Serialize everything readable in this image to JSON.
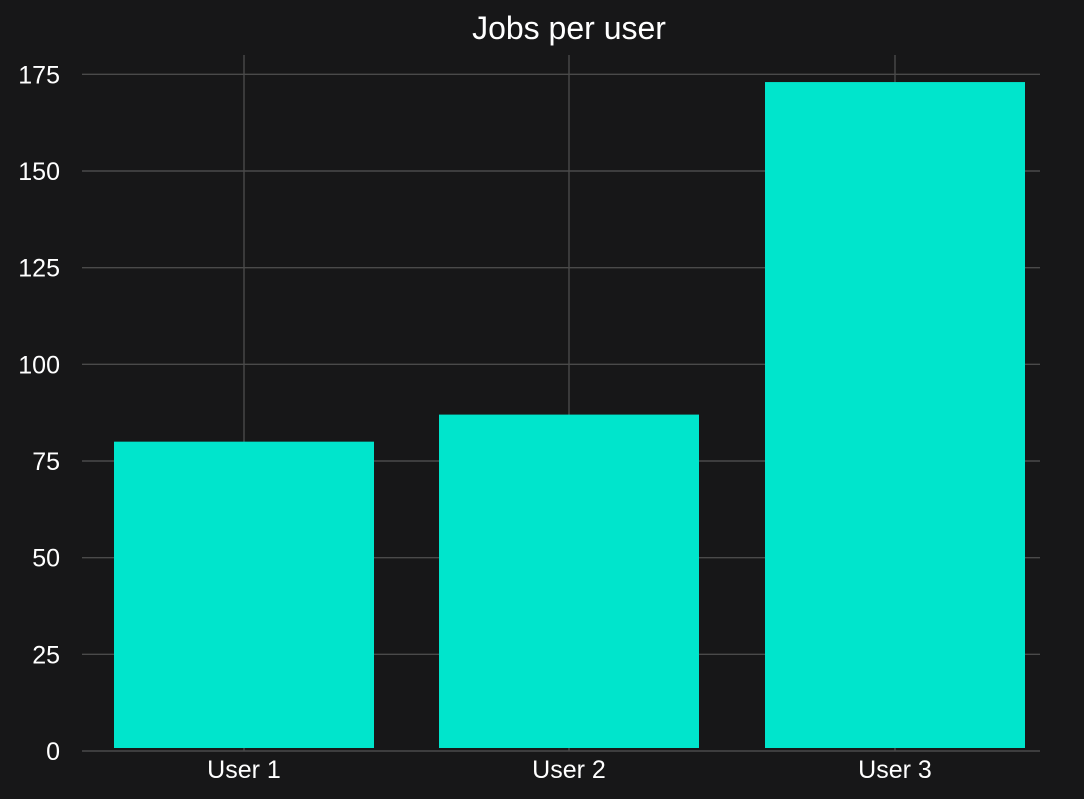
{
  "chart_data": {
    "type": "bar",
    "title": "Jobs per user",
    "xlabel": "",
    "ylabel": "",
    "categories": [
      "User 1",
      "User 2",
      "User 3"
    ],
    "values": [
      80,
      87,
      173
    ],
    "ylim": [
      0,
      180
    ],
    "yticks": [
      0,
      25,
      50,
      75,
      100,
      125,
      150,
      175
    ],
    "grid": true,
    "bar_color": "#00e5cc",
    "background_color": "#171718",
    "grid_color": "#4a4a4a"
  }
}
